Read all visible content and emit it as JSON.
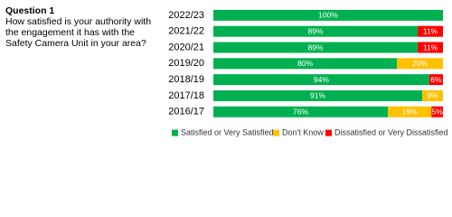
{
  "question": {
    "label": "Question 1",
    "text": "How satisfied is your authority with the engagement it has with the Safety Camera Unit in your area?"
  },
  "chart_data": {
    "type": "stacked-barh",
    "categories": [
      "2022/23",
      "2021/22",
      "2020/21",
      "2019/20",
      "2018/19",
      "2017/18",
      "2016/17"
    ],
    "series": [
      {
        "name": "Satisfied or Very Satisfied",
        "color": "#00b050",
        "values": [
          100,
          89,
          89,
          80,
          94,
          91,
          76
        ],
        "value_labels": [
          "100%",
          "89%",
          "89%",
          "80%",
          "94%",
          "91%",
          "76%"
        ]
      },
      {
        "name": "Don't Know",
        "color": "#ffc000",
        "values": [
          0,
          0,
          0,
          20,
          0,
          9,
          19
        ],
        "value_labels": [
          null,
          null,
          null,
          "20%",
          null,
          "9%",
          "19%"
        ]
      },
      {
        "name": "Dissatisfied or Very Dissatisfied",
        "color": "#ff0000",
        "values": [
          0,
          11,
          11,
          0,
          6,
          0,
          5
        ],
        "value_labels": [
          null,
          "11%",
          "11%",
          null,
          "6%",
          null,
          "5%"
        ]
      }
    ],
    "xlim": [
      0,
      100
    ]
  }
}
